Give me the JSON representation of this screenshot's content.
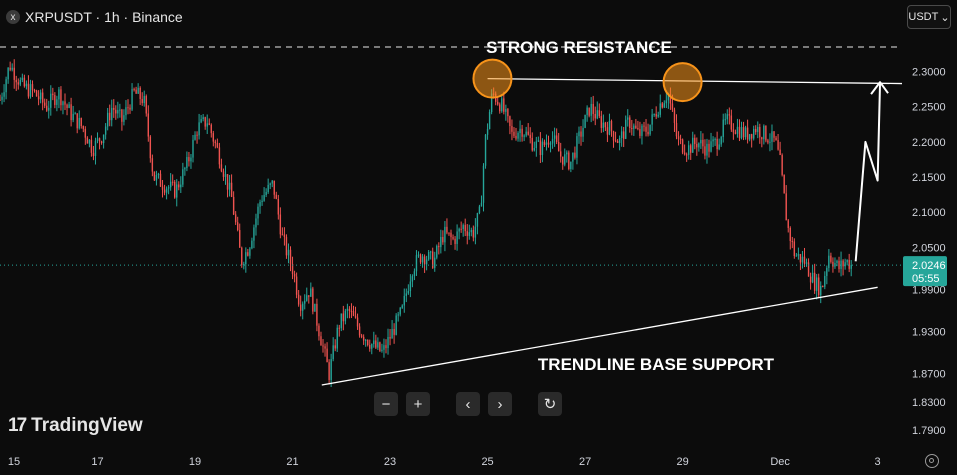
{
  "header": {
    "symbol_line": "XRPUSDT · 1h · Binance",
    "close_glyph": "x"
  },
  "currency_selector": {
    "label": "USDT",
    "caret": "⌄"
  },
  "controls": {
    "zoom_out": "−",
    "zoom_in": "+",
    "scroll_left": "‹",
    "scroll_right": "›",
    "reset": "↻"
  },
  "branding": {
    "mark": "17",
    "name": "TradingView"
  },
  "colors": {
    "up": "#26a69a",
    "down": "#ef5350",
    "background": "#0c0c0c",
    "annotation": "#ffffff",
    "circle": "#f7931a"
  },
  "chart_data": {
    "type": "candlestick",
    "symbol": "XRPUSDT",
    "interval": "1h",
    "exchange": "Binance",
    "x_ticks": [
      {
        "label": "15",
        "day": 15
      },
      {
        "label": "17",
        "day": 17
      },
      {
        "label": "19",
        "day": 19
      },
      {
        "label": "21",
        "day": 21
      },
      {
        "label": "23",
        "day": 23
      },
      {
        "label": "25",
        "day": 25
      },
      {
        "label": "27",
        "day": 27
      },
      {
        "label": "29",
        "day": 29
      },
      {
        "label": "Dec",
        "day": 31
      },
      {
        "label": "3",
        "day": 33
      }
    ],
    "xlim": [
      15,
      33.5
    ],
    "y_ticks": [
      "2.3000",
      "2.2500",
      "2.2000",
      "2.1500",
      "2.1000",
      "2.0500",
      "1.9900",
      "1.9300",
      "1.8700",
      "1.8300",
      "1.7900"
    ],
    "ylim": [
      1.77,
      2.345
    ],
    "last_price": {
      "value": "2.0246",
      "countdown": "05:55"
    },
    "price_path": [
      [
        15.0,
        2.26
      ],
      [
        15.2,
        2.31
      ],
      [
        15.45,
        2.28
      ],
      [
        15.7,
        2.27
      ],
      [
        15.95,
        2.25
      ],
      [
        16.2,
        2.27
      ],
      [
        16.45,
        2.24
      ],
      [
        16.7,
        2.22
      ],
      [
        16.9,
        2.19
      ],
      [
        17.1,
        2.21
      ],
      [
        17.3,
        2.25
      ],
      [
        17.5,
        2.23
      ],
      [
        17.75,
        2.27
      ],
      [
        17.95,
        2.26
      ],
      [
        18.15,
        2.15
      ],
      [
        18.35,
        2.14
      ],
      [
        18.6,
        2.13
      ],
      [
        18.85,
        2.17
      ],
      [
        19.05,
        2.22
      ],
      [
        19.25,
        2.23
      ],
      [
        19.5,
        2.18
      ],
      [
        19.75,
        2.12
      ],
      [
        19.95,
        2.03
      ],
      [
        20.1,
        2.05
      ],
      [
        20.35,
        2.12
      ],
      [
        20.6,
        2.14
      ],
      [
        20.8,
        2.06
      ],
      [
        21.0,
        2.02
      ],
      [
        21.15,
        1.97
      ],
      [
        21.35,
        1.99
      ],
      [
        21.55,
        1.93
      ],
      [
        21.75,
        1.87
      ],
      [
        21.95,
        1.94
      ],
      [
        22.15,
        1.96
      ],
      [
        22.4,
        1.93
      ],
      [
        22.65,
        1.91
      ],
      [
        22.85,
        1.9
      ],
      [
        23.05,
        1.93
      ],
      [
        23.25,
        1.96
      ],
      [
        23.45,
        2.02
      ],
      [
        23.65,
        2.04
      ],
      [
        23.9,
        2.03
      ],
      [
        24.1,
        2.07
      ],
      [
        24.3,
        2.06
      ],
      [
        24.5,
        2.08
      ],
      [
        24.7,
        2.07
      ],
      [
        24.85,
        2.1
      ],
      [
        24.95,
        2.2
      ],
      [
        25.1,
        2.27
      ],
      [
        25.3,
        2.25
      ],
      [
        25.5,
        2.21
      ],
      [
        25.7,
        2.22
      ],
      [
        25.9,
        2.2
      ],
      [
        26.1,
        2.19
      ],
      [
        26.3,
        2.21
      ],
      [
        26.5,
        2.18
      ],
      [
        26.7,
        2.17
      ],
      [
        26.9,
        2.21
      ],
      [
        27.1,
        2.25
      ],
      [
        27.3,
        2.23
      ],
      [
        27.5,
        2.22
      ],
      [
        27.7,
        2.2
      ],
      [
        27.9,
        2.23
      ],
      [
        28.1,
        2.21
      ],
      [
        28.3,
        2.22
      ],
      [
        28.5,
        2.25
      ],
      [
        28.7,
        2.27
      ],
      [
        28.9,
        2.2
      ],
      [
        29.1,
        2.19
      ],
      [
        29.3,
        2.2
      ],
      [
        29.5,
        2.19
      ],
      [
        29.7,
        2.2
      ],
      [
        29.9,
        2.23
      ],
      [
        30.1,
        2.22
      ],
      [
        30.3,
        2.21
      ],
      [
        30.5,
        2.22
      ],
      [
        30.7,
        2.21
      ],
      [
        30.9,
        2.2
      ],
      [
        31.0,
        2.17
      ],
      [
        31.15,
        2.08
      ],
      [
        31.3,
        2.04
      ],
      [
        31.5,
        2.03
      ],
      [
        31.7,
        2.0
      ],
      [
        31.85,
        1.99
      ],
      [
        32.0,
        2.04
      ],
      [
        32.2,
        2.02
      ],
      [
        32.35,
        2.03
      ],
      [
        32.5,
        2.0246
      ]
    ],
    "annotations": {
      "resistance_label": "STRONG RESISTANCE",
      "support_label": "TRENDLINE BASE SUPPORT",
      "resistance_line": [
        [
          25.0,
          2.29
        ],
        [
          33.5,
          2.283
        ]
      ],
      "support_line": [
        [
          21.6,
          1.854
        ],
        [
          33.0,
          1.993
        ]
      ],
      "swing_high_circles": [
        [
          25.1,
          2.29
        ],
        [
          29.0,
          2.285
        ]
      ],
      "dashed_high_line": 2.335,
      "projection_arrow": [
        [
          32.55,
          2.03
        ],
        [
          32.75,
          2.2
        ],
        [
          33.0,
          2.145
        ],
        [
          33.05,
          2.285
        ]
      ]
    }
  }
}
